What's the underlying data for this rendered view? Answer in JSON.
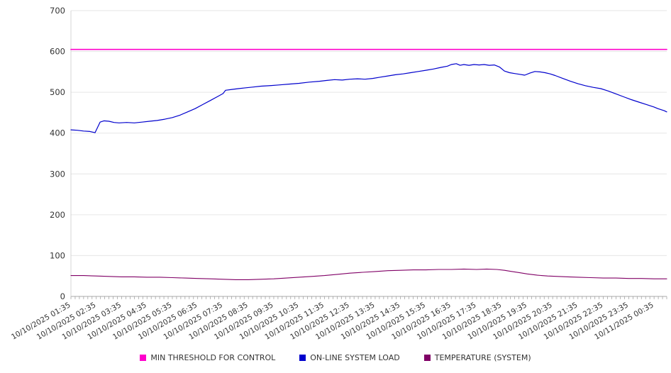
{
  "chart_data": {
    "type": "line",
    "title": "",
    "xlabel": "",
    "ylabel": "",
    "ylim": [
      0,
      700
    ],
    "y_ticks": [
      0,
      100,
      200,
      300,
      400,
      500,
      600,
      700
    ],
    "x_range": [
      0,
      23.5
    ],
    "grid": true,
    "legend_position": "bottom",
    "x_tick_labels": [
      "10/10/2025 01:35",
      "10/10/2025 02:35",
      "10/10/2025 03:35",
      "10/10/2025 04:35",
      "10/10/2025 05:35",
      "10/10/2025 06:35",
      "10/10/2025 07:35",
      "10/10/2025 08:35",
      "10/10/2025 09:35",
      "10/10/2025 10:35",
      "10/10/2025 11:35",
      "10/10/2025 12:35",
      "10/10/2025 13:35",
      "10/10/2025 14:35",
      "10/10/2025 15:35",
      "10/10/2025 16:35",
      "10/10/2025 17:35",
      "10/10/2025 18:35",
      "10/10/2025 19:35",
      "10/10/2025 20:35",
      "10/10/2025 21:35",
      "10/10/2025 22:35",
      "10/10/2025 23:35",
      "10/11/2025 00:35"
    ],
    "series": [
      {
        "name": "MIN THRESHOLD FOR CONTROL",
        "color": "#ff00cc",
        "width": 1.6,
        "points": [
          [
            0,
            605
          ],
          [
            23.5,
            605
          ]
        ]
      },
      {
        "name": "ON-LINE SYSTEM LOAD",
        "color": "#0000cd",
        "width": 1.2,
        "points": [
          [
            0,
            408
          ],
          [
            0.25,
            407
          ],
          [
            0.5,
            405
          ],
          [
            0.75,
            404
          ],
          [
            0.95,
            401
          ],
          [
            1.05,
            414
          ],
          [
            1.15,
            427
          ],
          [
            1.3,
            430
          ],
          [
            1.5,
            429
          ],
          [
            1.7,
            426
          ],
          [
            1.9,
            425
          ],
          [
            2.2,
            426
          ],
          [
            2.5,
            425
          ],
          [
            2.8,
            427
          ],
          [
            3.1,
            429
          ],
          [
            3.4,
            431
          ],
          [
            3.7,
            434
          ],
          [
            4.0,
            438
          ],
          [
            4.3,
            444
          ],
          [
            4.6,
            452
          ],
          [
            4.9,
            460
          ],
          [
            5.2,
            470
          ],
          [
            5.5,
            480
          ],
          [
            5.8,
            490
          ],
          [
            6.0,
            497
          ],
          [
            6.1,
            505
          ],
          [
            6.35,
            507
          ],
          [
            6.6,
            509
          ],
          [
            6.9,
            511
          ],
          [
            7.2,
            513
          ],
          [
            7.5,
            515
          ],
          [
            7.8,
            516
          ],
          [
            8.2,
            518
          ],
          [
            8.6,
            520
          ],
          [
            9.0,
            522
          ],
          [
            9.4,
            525
          ],
          [
            9.8,
            527
          ],
          [
            10.1,
            529
          ],
          [
            10.4,
            531
          ],
          [
            10.7,
            530
          ],
          [
            11.0,
            532
          ],
          [
            11.3,
            533
          ],
          [
            11.6,
            532
          ],
          [
            11.9,
            534
          ],
          [
            12.2,
            537
          ],
          [
            12.5,
            540
          ],
          [
            12.8,
            543
          ],
          [
            13.1,
            545
          ],
          [
            13.4,
            548
          ],
          [
            13.7,
            551
          ],
          [
            14.0,
            554
          ],
          [
            14.3,
            557
          ],
          [
            14.6,
            561
          ],
          [
            14.85,
            564
          ],
          [
            15.0,
            568
          ],
          [
            15.2,
            570
          ],
          [
            15.35,
            566
          ],
          [
            15.5,
            568
          ],
          [
            15.7,
            566
          ],
          [
            15.9,
            568
          ],
          [
            16.1,
            567
          ],
          [
            16.3,
            568
          ],
          [
            16.5,
            566
          ],
          [
            16.7,
            567
          ],
          [
            16.9,
            562
          ],
          [
            17.1,
            552
          ],
          [
            17.3,
            548
          ],
          [
            17.5,
            546
          ],
          [
            17.7,
            544
          ],
          [
            17.9,
            542
          ],
          [
            18.1,
            547
          ],
          [
            18.3,
            551
          ],
          [
            18.5,
            550
          ],
          [
            18.7,
            548
          ],
          [
            18.9,
            545
          ],
          [
            19.1,
            541
          ],
          [
            19.4,
            534
          ],
          [
            19.7,
            527
          ],
          [
            20.0,
            521
          ],
          [
            20.3,
            516
          ],
          [
            20.6,
            512
          ],
          [
            20.9,
            509
          ],
          [
            21.2,
            503
          ],
          [
            21.5,
            496
          ],
          [
            21.8,
            489
          ],
          [
            22.1,
            482
          ],
          [
            22.4,
            476
          ],
          [
            22.7,
            470
          ],
          [
            23.0,
            464
          ],
          [
            23.15,
            460
          ],
          [
            23.3,
            457
          ],
          [
            23.4,
            455
          ],
          [
            23.5,
            452
          ]
        ]
      },
      {
        "name": "TEMPERATURE (SYSTEM)",
        "color": "#800066",
        "width": 1.1,
        "points": [
          [
            0,
            51
          ],
          [
            0.5,
            51
          ],
          [
            1,
            50
          ],
          [
            1.5,
            49
          ],
          [
            2,
            48
          ],
          [
            2.5,
            48
          ],
          [
            3,
            47
          ],
          [
            3.5,
            47
          ],
          [
            4,
            46
          ],
          [
            4.5,
            45
          ],
          [
            5,
            44
          ],
          [
            5.5,
            43
          ],
          [
            6,
            42
          ],
          [
            6.5,
            41
          ],
          [
            7,
            41
          ],
          [
            7.5,
            42
          ],
          [
            8,
            43
          ],
          [
            8.5,
            45
          ],
          [
            9,
            47
          ],
          [
            9.5,
            49
          ],
          [
            10,
            51
          ],
          [
            10.5,
            54
          ],
          [
            11,
            57
          ],
          [
            11.5,
            59
          ],
          [
            12,
            61
          ],
          [
            12.5,
            63
          ],
          [
            13,
            64
          ],
          [
            13.5,
            65
          ],
          [
            14,
            65
          ],
          [
            14.5,
            66
          ],
          [
            15,
            66
          ],
          [
            15.5,
            67
          ],
          [
            16,
            66
          ],
          [
            16.4,
            67
          ],
          [
            16.8,
            66
          ],
          [
            17.1,
            64
          ],
          [
            17.4,
            61
          ],
          [
            17.7,
            58
          ],
          [
            18,
            55
          ],
          [
            18.4,
            52
          ],
          [
            18.8,
            50
          ],
          [
            19.2,
            49
          ],
          [
            19.6,
            48
          ],
          [
            20,
            47
          ],
          [
            20.5,
            46
          ],
          [
            21,
            45
          ],
          [
            21.5,
            45
          ],
          [
            22,
            44
          ],
          [
            22.5,
            44
          ],
          [
            23,
            43
          ],
          [
            23.5,
            43
          ]
        ]
      }
    ],
    "axis_text_color": "#333333",
    "gridline_color": "#e6e6e6",
    "axis_line_color": "#aaaaaa"
  }
}
